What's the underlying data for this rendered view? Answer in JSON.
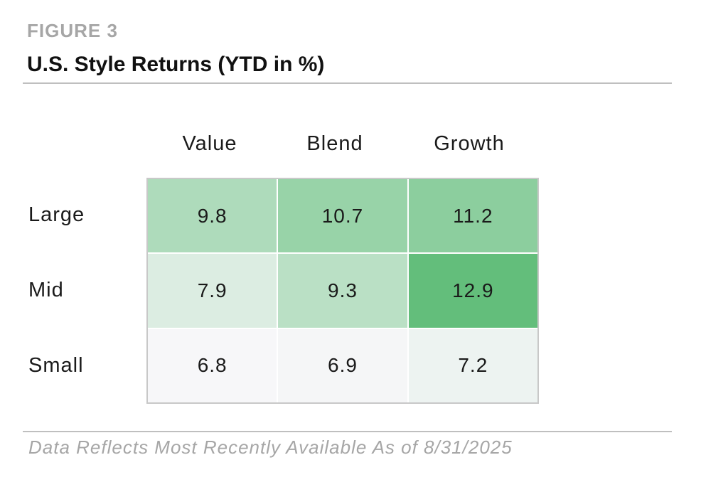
{
  "figure_label": "FIGURE 3",
  "footnote": "Data Reflects Most Recently Available As of 8/31/2025",
  "chart_data": {
    "type": "heatmap",
    "title": "U.S. Style Returns (YTD in %)",
    "columns": [
      "Value",
      "Blend",
      "Growth"
    ],
    "rows": [
      "Large",
      "Mid",
      "Small"
    ],
    "values": [
      [
        9.8,
        10.7,
        11.2
      ],
      [
        7.9,
        9.3,
        12.9
      ],
      [
        6.8,
        6.9,
        7.2
      ]
    ],
    "value_labels": [
      [
        "9.8",
        "10.7",
        "11.2"
      ],
      [
        "7.9",
        "9.3",
        "12.9"
      ],
      [
        "6.8",
        "6.9",
        "7.2"
      ]
    ],
    "colors": {
      "low": "#f7f7f9",
      "high": "#63be7b",
      "grid_line": "#ffffff",
      "border": "#c8c8c8"
    }
  }
}
